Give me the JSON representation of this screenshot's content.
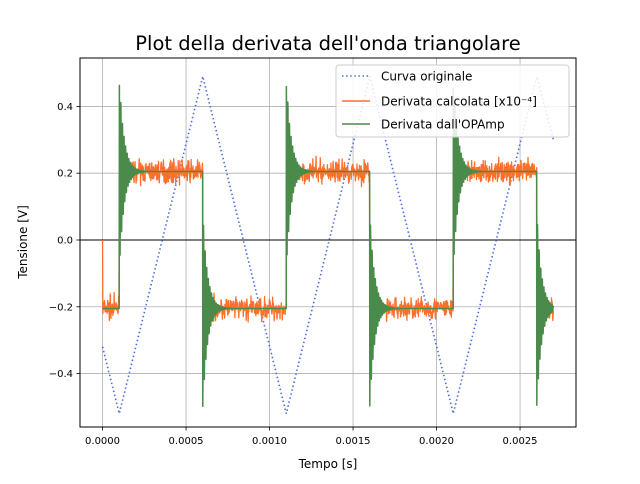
{
  "chart_data": {
    "type": "line",
    "title": "Plot della derivata dell'onda triangolare",
    "xlabel": "Tempo [s]",
    "ylabel": "Tensione [V]",
    "xlim": [
      -0.000135,
      0.002835
    ],
    "ylim": [
      -0.56,
      0.545
    ],
    "xticks": [
      {
        "value": 0,
        "label": "0.0000"
      },
      {
        "value": 0.0005,
        "label": "0.0005"
      },
      {
        "value": 0.001,
        "label": "0.0010"
      },
      {
        "value": 0.0015,
        "label": "0.0015"
      },
      {
        "value": 0.002,
        "label": "0.0020"
      },
      {
        "value": 0.0025,
        "label": "0.0025"
      }
    ],
    "yticks": [
      {
        "value": -0.4,
        "label": "−0.4"
      },
      {
        "value": -0.2,
        "label": "−0.2"
      },
      {
        "value": 0.0,
        "label": "0.0"
      },
      {
        "value": 0.2,
        "label": "0.2"
      },
      {
        "value": 0.4,
        "label": "0.4"
      }
    ],
    "grid": true,
    "zero_line": true,
    "legend_position": "top-right",
    "triangle_period": 0.001,
    "triangle_amplitude": 0.5,
    "derivative_level": 0.205,
    "series": [
      {
        "name": "Curva originale",
        "style": "dotted",
        "color": "#4a6ee0",
        "x": [
          0.0,
          0.0001,
          0.0006,
          0.0011,
          0.0016,
          0.0021,
          0.0026,
          0.0027
        ],
        "y": [
          -0.32,
          -0.52,
          0.49,
          -0.52,
          0.49,
          -0.52,
          0.49,
          0.3
        ]
      },
      {
        "name": "Derivata calcolata [x10⁻⁴]",
        "style": "solid",
        "color": "#ff6f2c",
        "noise_amplitude": 0.04
      },
      {
        "name": "Derivata dall'OPAmp",
        "style": "solid",
        "color": "#4a8a4a",
        "ringing_peak": 0.49
      }
    ]
  }
}
